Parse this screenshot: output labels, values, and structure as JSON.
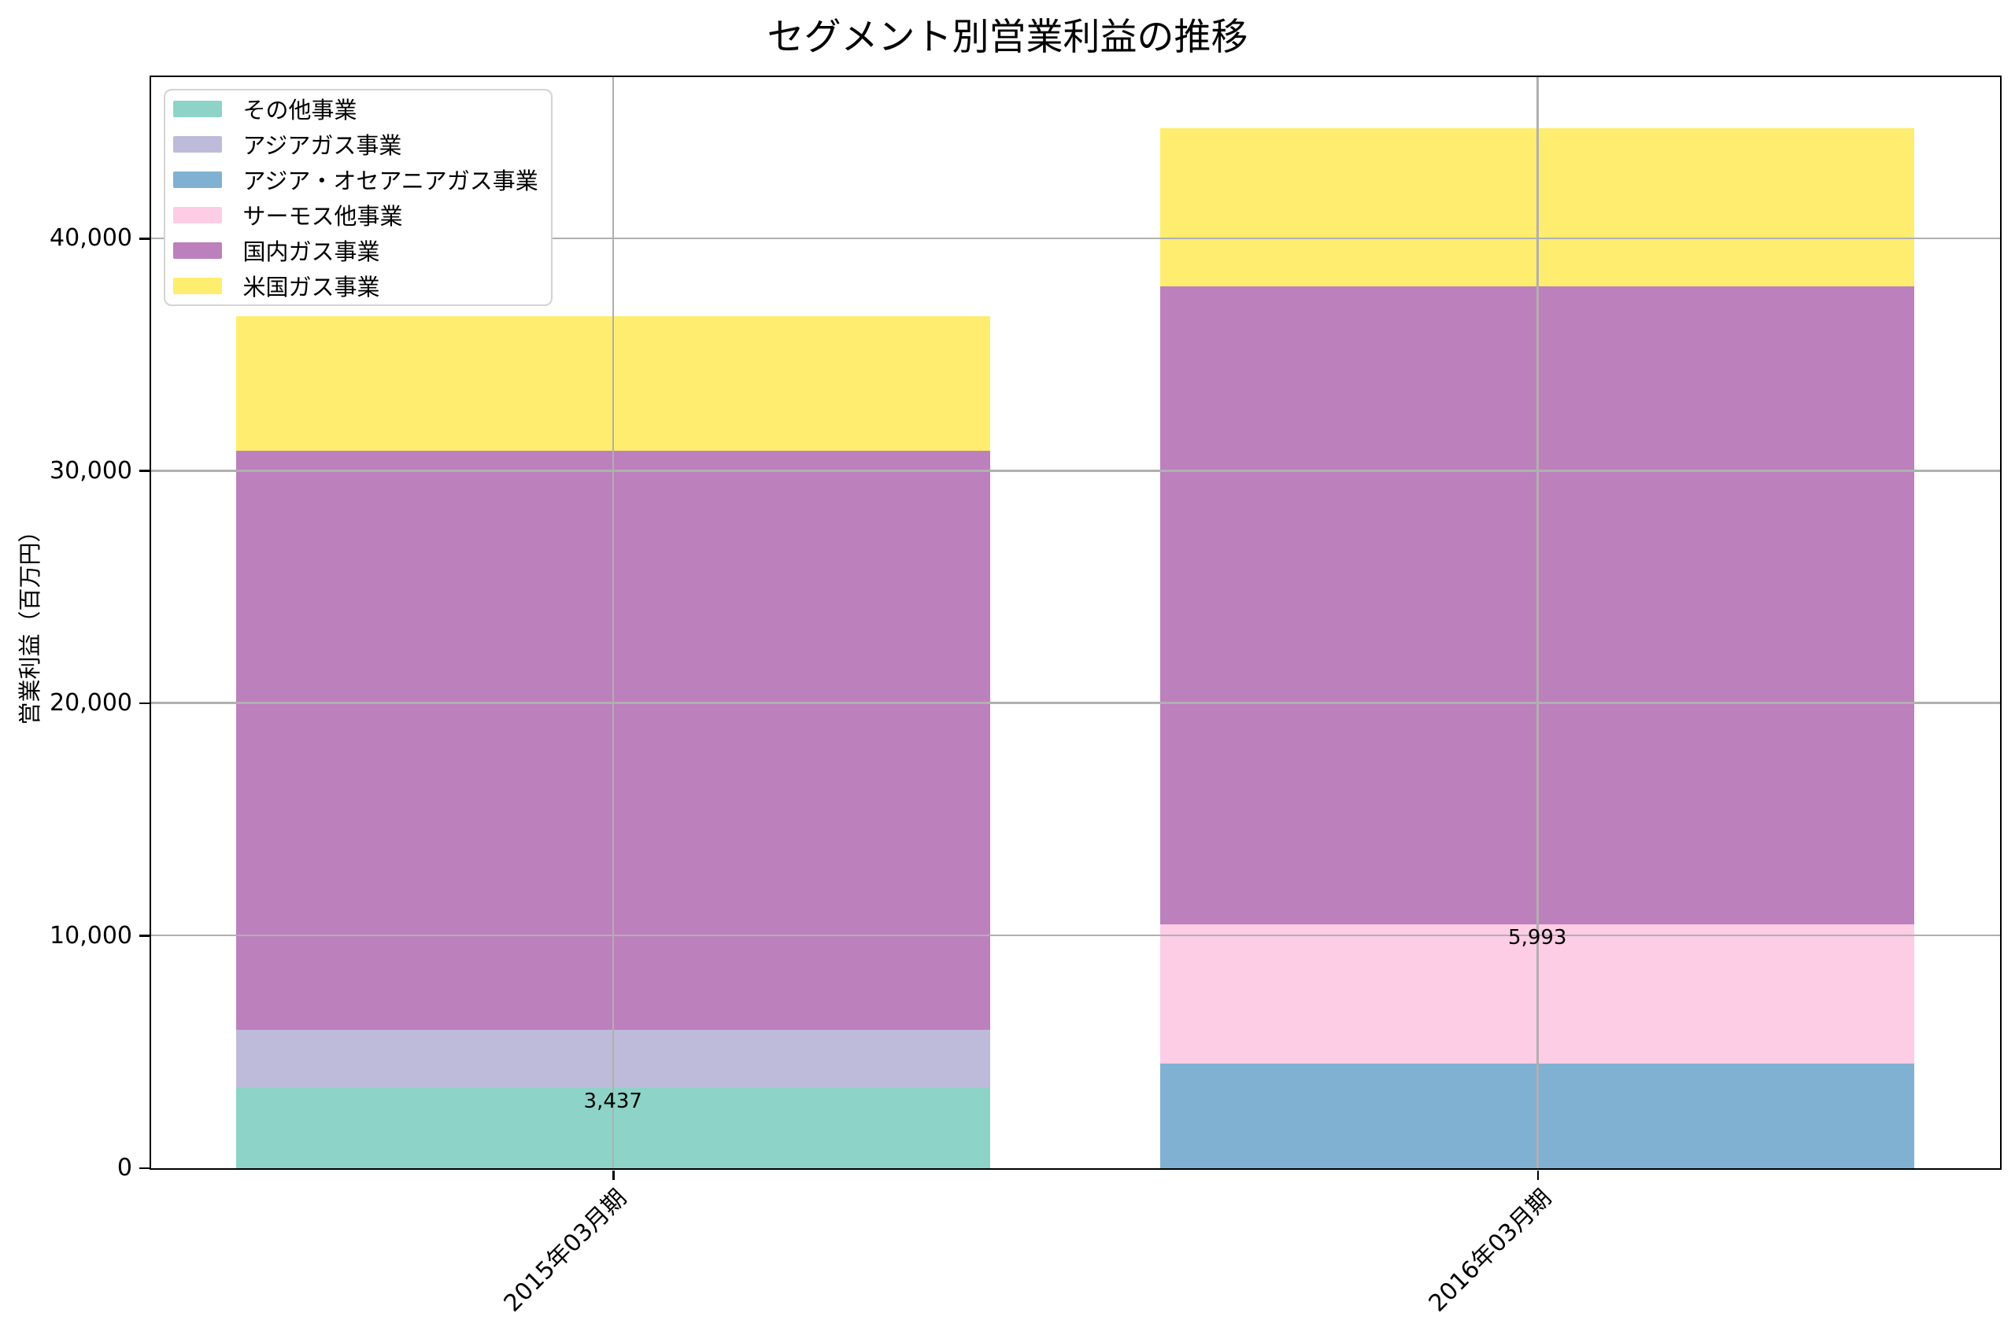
{
  "chart_data": {
    "type": "bar",
    "stacked": true,
    "title": "セグメント別営業利益の推移",
    "ylabel": "営業利益（百万円）",
    "xlabel": "",
    "categories": [
      "2015年03月期",
      "2016年03月期"
    ],
    "series": [
      {
        "name": "その他事業",
        "color": "#8dd3c7",
        "values": [
          3437,
          0
        ]
      },
      {
        "name": "アジアガス事業",
        "color": "#bebada",
        "values": [
          2508,
          0
        ]
      },
      {
        "name": "アジア・オセアニアガス事業",
        "color": "#80b1d3",
        "values": [
          0,
          4480
        ]
      },
      {
        "name": "サーモス他事業",
        "color": "#fccde5",
        "values": [
          0,
          5993
        ]
      },
      {
        "name": "国内ガス事業",
        "color": "#bc80bd",
        "values": [
          24906,
          27457
        ]
      },
      {
        "name": "米国ガス事業",
        "color": "#ffed6f",
        "values": [
          5777,
          6790
        ]
      }
    ],
    "bar_labels": [
      {
        "category_index": 0,
        "text": "3,437",
        "edge_value": 3437
      },
      {
        "category_index": 1,
        "text": "5,993",
        "edge_value": 10473
      }
    ],
    "y_axis": {
      "min": 0,
      "max": 46950,
      "ticks": [
        0,
        10000,
        20000,
        30000,
        40000
      ],
      "tick_labels": [
        "0",
        "10,000",
        "20,000",
        "30,000",
        "40,000"
      ]
    },
    "grid": true,
    "legend_position": "upper left"
  },
  "colors": {
    "grid": "#b0b0b0",
    "spine": "#000000",
    "text": "#000000",
    "legend_border": "#d4d4d4",
    "legend_bg": "#ffffff",
    "background": "#ffffff"
  }
}
